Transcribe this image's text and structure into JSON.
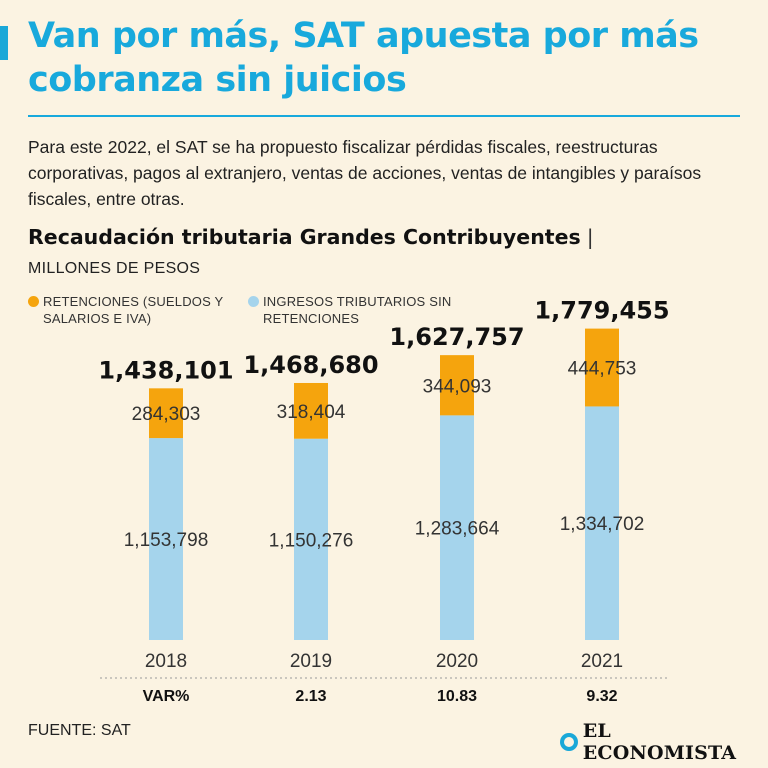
{
  "header": {
    "title": "Van por más, SAT apuesta por más cobranza sin juicios",
    "intro": "Para este 2022, el SAT se ha propuesto fiscalizar pérdidas fiscales, reestructuras corporativas, pagos al extranjero, ventas de acciones, ventas de intangibles y paraísos fiscales, entre otras."
  },
  "colors": {
    "accent": "#18a9dc",
    "retenciones": "#f5a40d",
    "ingresos": "#a5d4ec",
    "background": "#fbf3e2"
  },
  "chart_data": {
    "type": "bar",
    "stacked": true,
    "title": "Recaudación tributaria Grandes Contribuyentes",
    "title_separator": "|",
    "unit": "MILLONES DE PESOS",
    "categories": [
      "2018",
      "2019",
      "2020",
      "2021"
    ],
    "series": [
      {
        "name": "INGRESOS TRIBUTARIOS SIN RETENCIONES",
        "values": [
          1153798,
          1150276,
          1283664,
          1334702
        ],
        "labels": [
          "1,153,798",
          "1,150,276",
          "1,283,664",
          "1,334,702"
        ]
      },
      {
        "name": "RETENCIONES (SUELDOS Y SALARIOS E IVA)",
        "values": [
          284303,
          318404,
          344093,
          444753
        ],
        "labels": [
          "284,303",
          "318,404",
          "344,093",
          "444,753"
        ]
      }
    ],
    "totals": [
      1438101,
      1468680,
      1627757,
      1779455
    ],
    "total_labels": [
      "1,438,101",
      "1,468,680",
      "1,627,757",
      "1,779,455"
    ],
    "var_label": "VAR%",
    "var_values": [
      "",
      "2.13",
      "10.83",
      "9.32"
    ],
    "legend": [
      {
        "line1": "RETENCIONES (SUELDOS Y",
        "line2": "SALARIOS E IVA)"
      },
      {
        "line1": "INGRESOS TRIBUTARIOS SIN",
        "line2": "RETENCIONES"
      }
    ],
    "ylim": [
      0,
      1800000
    ]
  },
  "footer": {
    "source": "FUENTE: SAT",
    "logo_text": "EL ECONOMISTA",
    "logo_icon": "e-logo-icon"
  }
}
